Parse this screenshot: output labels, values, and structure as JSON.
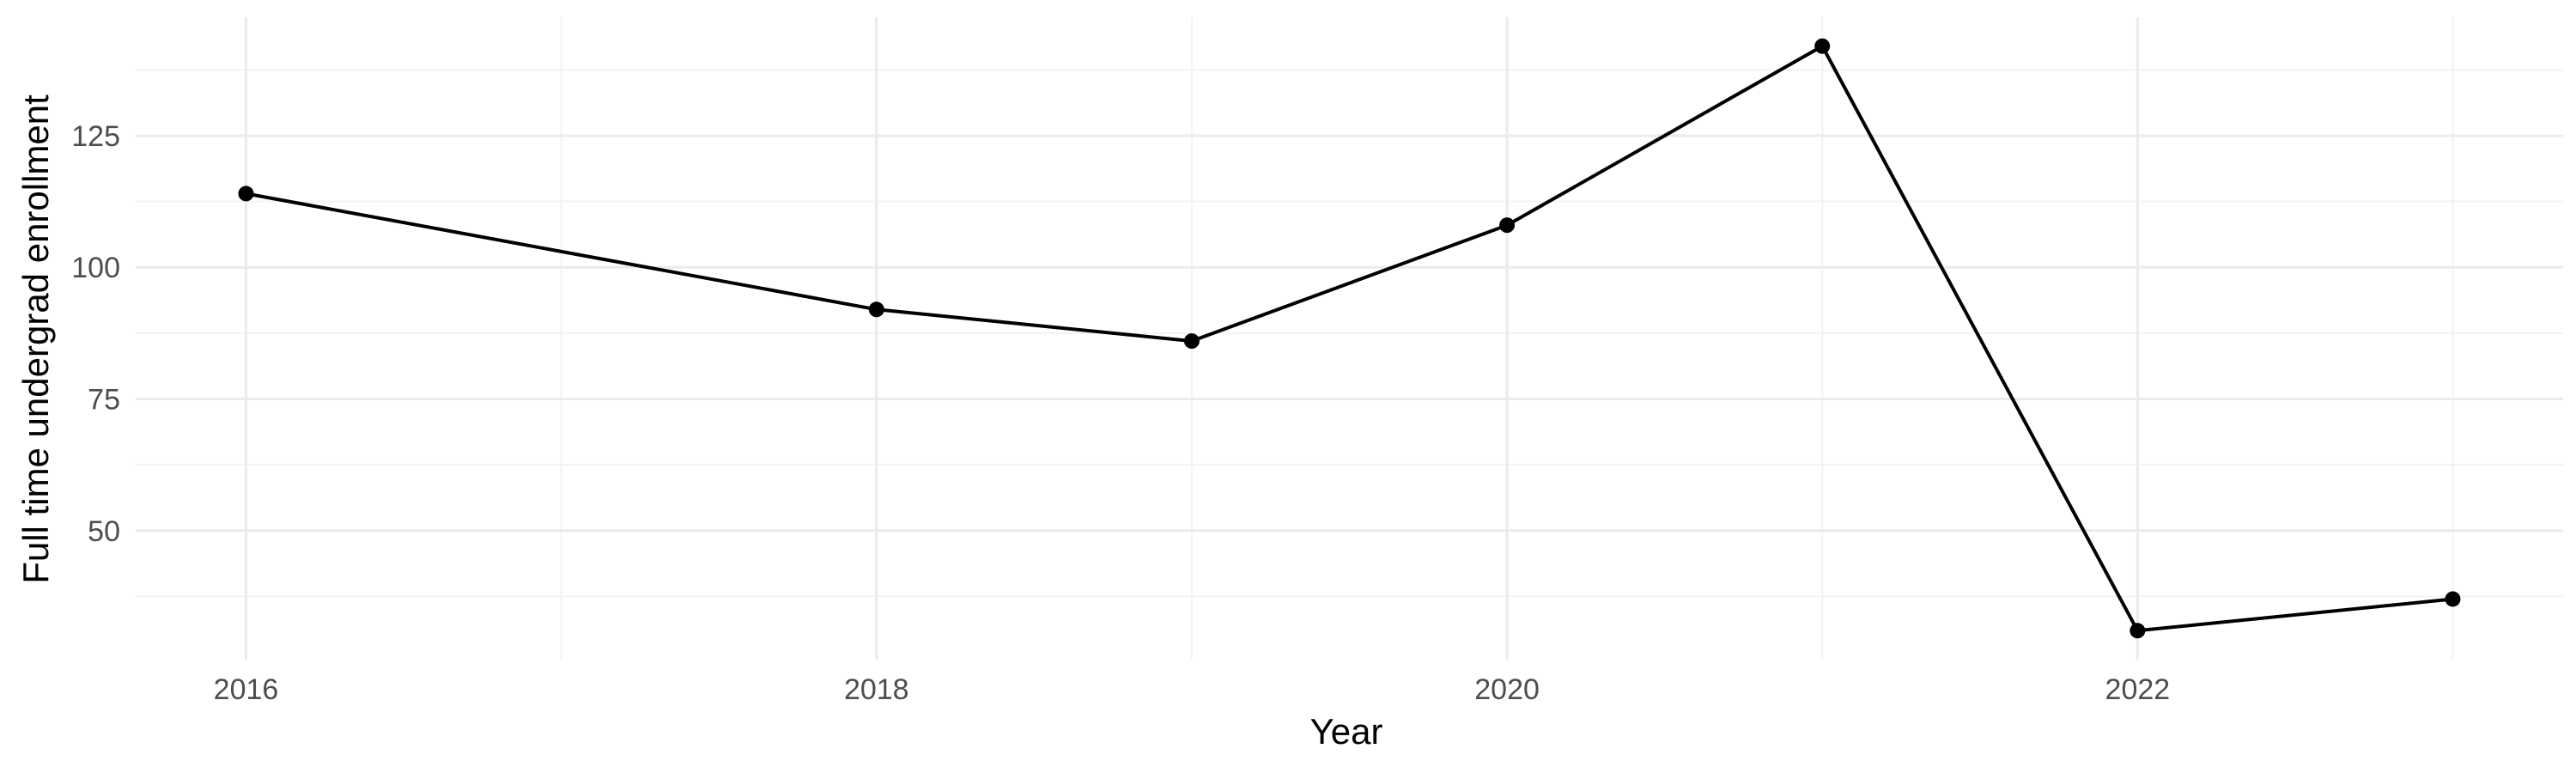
{
  "chart_data": {
    "type": "line",
    "title": "",
    "xlabel": "Year",
    "ylabel": "Full time undergrad enrollment",
    "x": [
      2016,
      2018,
      2019,
      2020,
      2021,
      2022,
      2023
    ],
    "series": [
      {
        "values": [
          114,
          92,
          86,
          108,
          142,
          31,
          37
        ]
      }
    ],
    "xlim": [
      2015.65,
      2023.35
    ],
    "ylim": [
      25.5,
      147.5
    ],
    "x_ticks": [
      2016,
      2018,
      2020,
      2022
    ],
    "y_ticks": [
      50,
      75,
      100,
      125
    ],
    "grid": true,
    "legend": "none",
    "colors": {
      "line": "#000000",
      "point": "#000000",
      "grid": "#ebebeb"
    }
  }
}
